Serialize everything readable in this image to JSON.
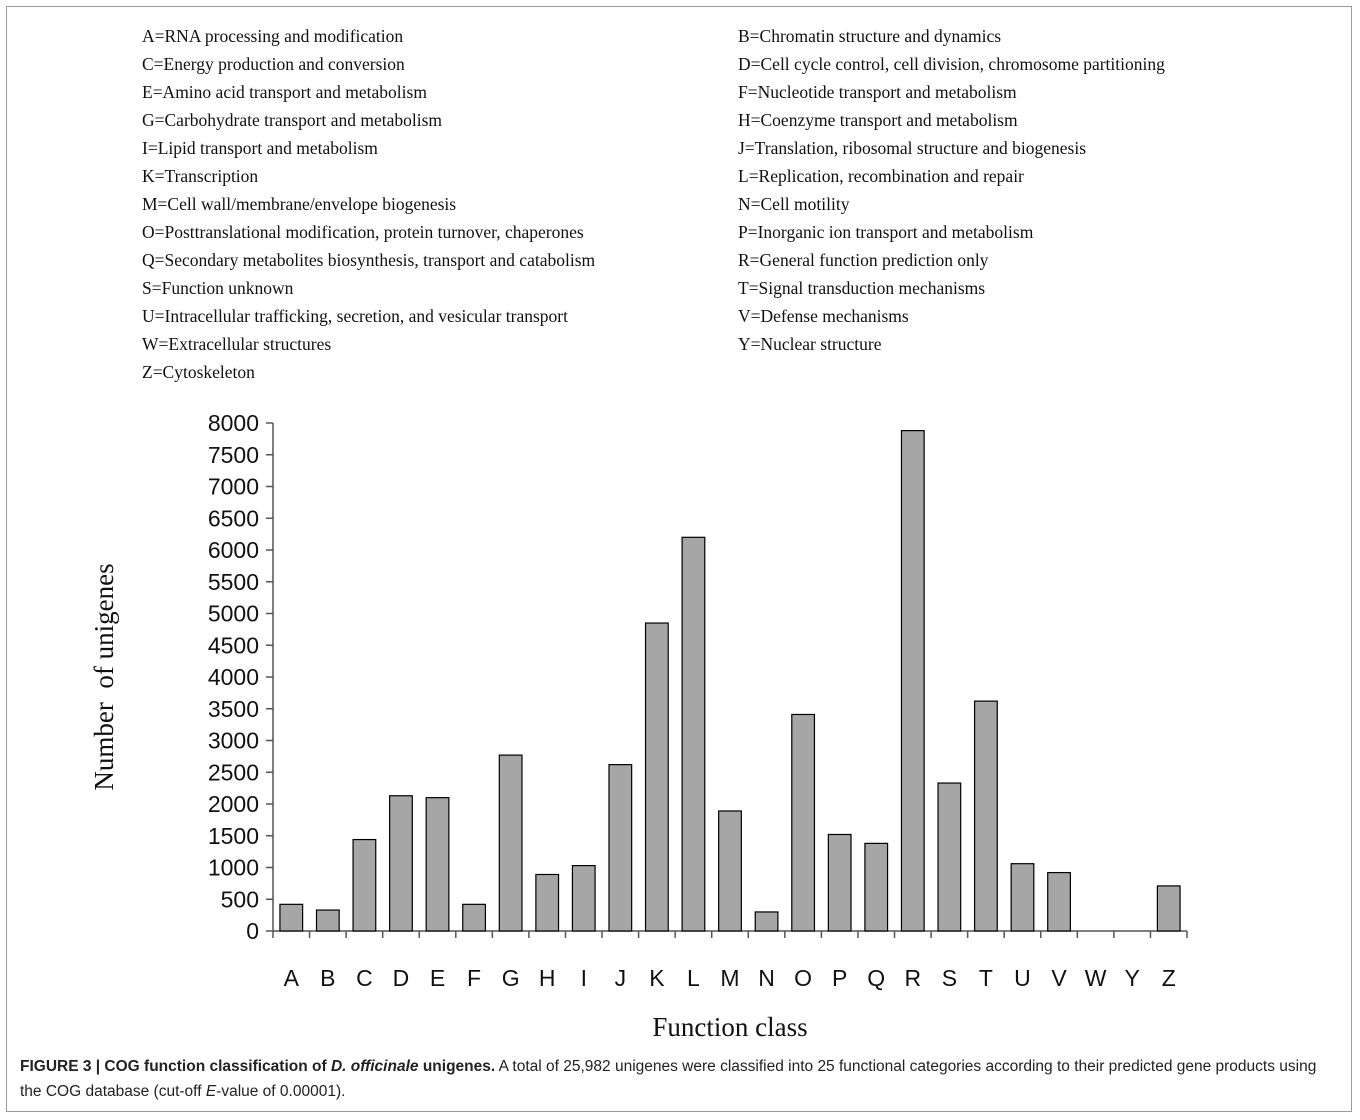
{
  "legend": [
    "A=RNA processing and modification",
    "B=Chromatin structure and dynamics",
    "C=Energy production and conversion",
    "D=Cell cycle control, cell division, chromosome partitioning",
    "E=Amino acid transport and metabolism",
    "F=Nucleotide transport and metabolism",
    "G=Carbohydrate transport and metabolism",
    "H=Coenzyme transport and metabolism",
    "I=Lipid transport and metabolism",
    "J=Translation, ribosomal structure and biogenesis",
    "K=Transcription",
    "L=Replication, recombination and repair",
    "M=Cell wall/membrane/envelope biogenesis",
    "N=Cell motility",
    "O=Posttranslational modification, protein turnover, chaperones",
    "P=Inorganic ion transport and metabolism",
    "Q=Secondary metabolites biosynthesis, transport and catabolism",
    "R=General function prediction only",
    "S=Function unknown",
    "T=Signal transduction mechanisms",
    "U=Intracellular trafficking, secretion, and vesicular transport",
    "V=Defense mechanisms",
    "W=Extracellular structures",
    "Y=Nuclear structure",
    "Z=Cytoskeleton"
  ],
  "chart_data": {
    "type": "bar",
    "categories": [
      "A",
      "B",
      "C",
      "D",
      "E",
      "F",
      "G",
      "H",
      "I",
      "J",
      "K",
      "L",
      "M",
      "N",
      "O",
      "P",
      "Q",
      "R",
      "S",
      "T",
      "U",
      "V",
      "W",
      "Y",
      "Z"
    ],
    "values": [
      420,
      330,
      1440,
      2130,
      2100,
      420,
      2770,
      890,
      1030,
      2620,
      4850,
      6200,
      1890,
      300,
      3410,
      1520,
      1380,
      7880,
      2330,
      3620,
      1060,
      920,
      0,
      0,
      710
    ],
    "xlabel": "Function class",
    "ylabel": "Number  of unigenes",
    "ylim": [
      0,
      8000
    ],
    "yticks": [
      0,
      500,
      1000,
      1500,
      2000,
      2500,
      3000,
      3500,
      4000,
      4500,
      5000,
      5500,
      6000,
      6500,
      7000,
      7500,
      8000
    ],
    "bar_color": "#a6a6a6",
    "grid": false,
    "legend": "none"
  },
  "caption": {
    "title_a": "FIGURE 3 | COG function classification of ",
    "title_species": "D. officinale",
    "title_b": " unigenes.",
    "body_a": " A total of 25,982 unigenes were classified into 25 functional categories according to their predicted gene products using the COG database (cut-off ",
    "body_e": "E",
    "body_b": "-value of 0.00001)."
  }
}
